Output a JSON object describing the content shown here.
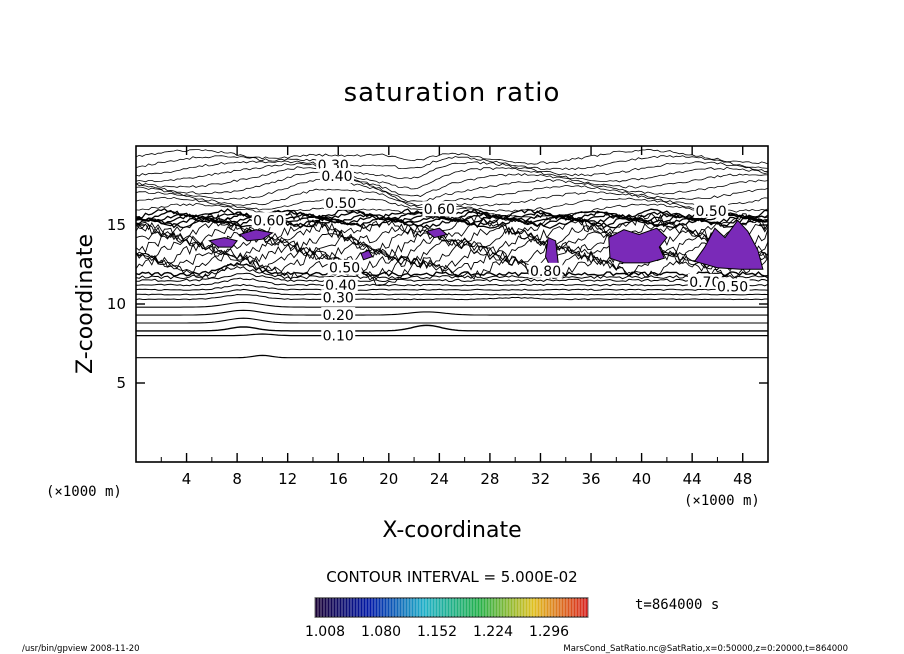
{
  "chart_data": {
    "type": "contour",
    "title": "saturation ratio",
    "xlabel": "X-coordinate",
    "ylabel": "Z-coordinate",
    "x_unit": "(×1000 m)",
    "y_unit": "(×1000 m)",
    "xlim": [
      0,
      50
    ],
    "ylim": [
      0,
      20
    ],
    "x_ticks": [
      "4",
      "8",
      "12",
      "16",
      "20",
      "24",
      "28",
      "32",
      "36",
      "40",
      "44",
      "48"
    ],
    "y_ticks": [
      "5",
      "10",
      "15"
    ],
    "contour_interval_label": "CONTOUR INTERVAL = 5.000E-02",
    "time_label": "t=864000 s",
    "colorbar": {
      "labels": [
        "1.008",
        "1.080",
        "1.152",
        "1.224",
        "1.296"
      ],
      "colors": [
        "#1a0033",
        "#0018a8",
        "#1fb0c8",
        "#22b04a",
        "#e0c020",
        "#d81e1e"
      ]
    },
    "fill_color": "#7a2ab8",
    "contour_labels": [
      {
        "text": "0.30",
        "x": 15.6,
        "z": 18.8
      },
      {
        "text": "0.40",
        "x": 15.9,
        "z": 18.1
      },
      {
        "text": "0.50",
        "x": 16.2,
        "z": 16.4
      },
      {
        "text": "0.60",
        "x": 24.0,
        "z": 16.0
      },
      {
        "text": "0.60",
        "x": 10.5,
        "z": 15.3
      },
      {
        "text": "0.50",
        "x": 45.5,
        "z": 15.9
      },
      {
        "text": "0.80",
        "x": 32.4,
        "z": 12.1
      },
      {
        "text": "0.70",
        "x": 45.0,
        "z": 11.4
      },
      {
        "text": "0.50",
        "x": 47.2,
        "z": 11.1
      },
      {
        "text": "0.50",
        "x": 16.5,
        "z": 12.3
      },
      {
        "text": "0.40",
        "x": 16.2,
        "z": 11.2
      },
      {
        "text": "0.30",
        "x": 16.0,
        "z": 10.4
      },
      {
        "text": "0.20",
        "x": 16.0,
        "z": 9.3
      },
      {
        "text": "0.10",
        "x": 16.0,
        "z": 8.0
      }
    ]
  },
  "footer": {
    "left": "/usr/bin/gpview   2008-11-20",
    "right": "MarsCond_SatRatio.nc@SatRatio,x=0:50000,z=0:20000,t=864000"
  }
}
